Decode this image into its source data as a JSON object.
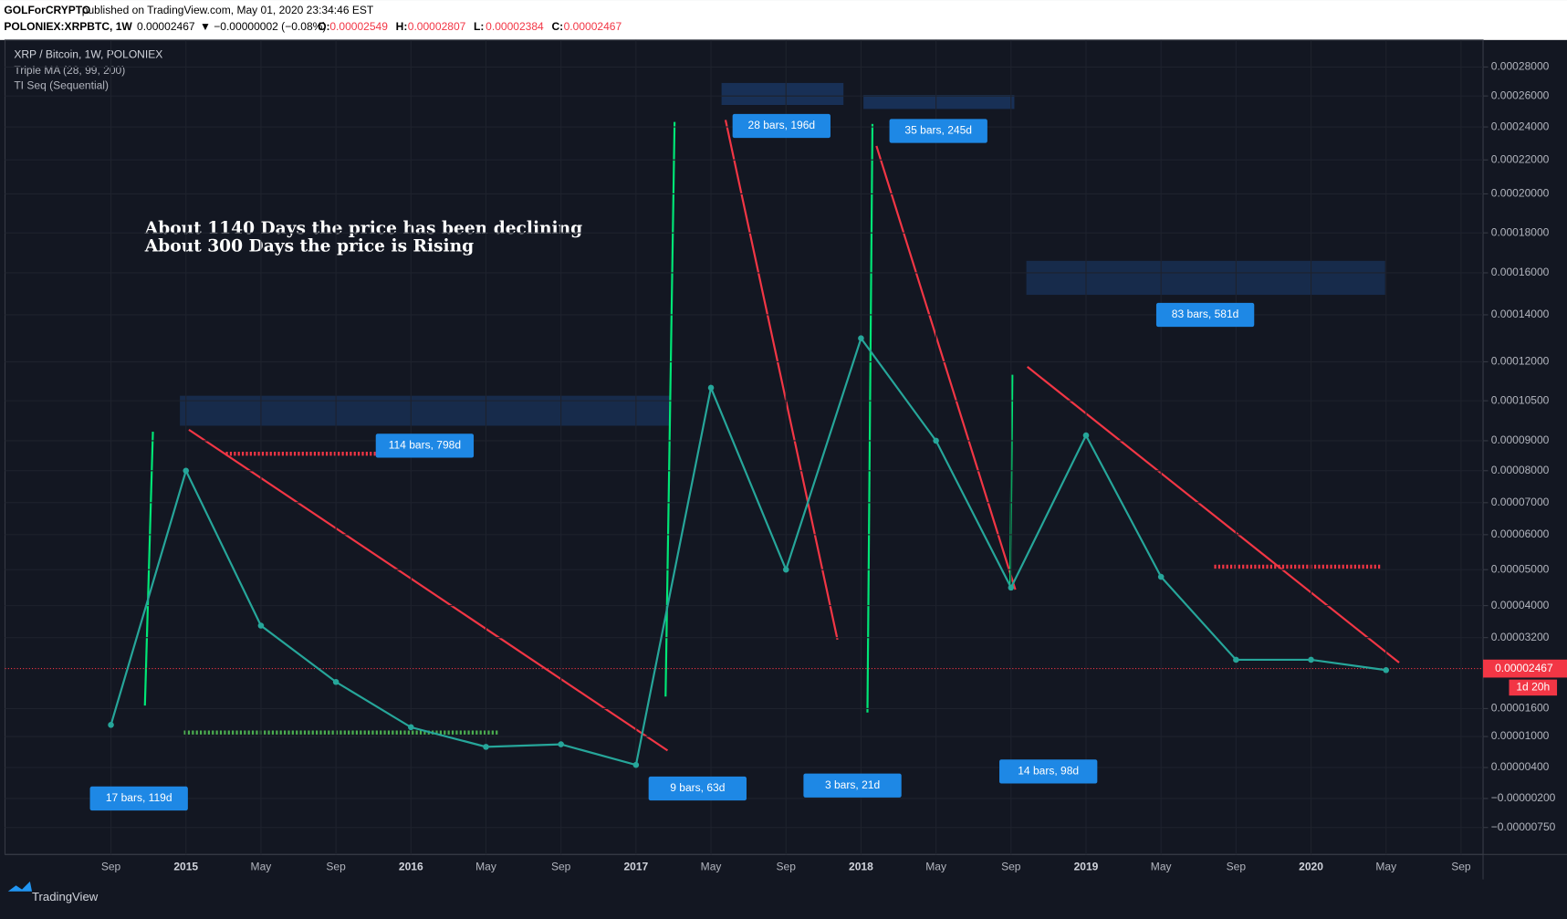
{
  "header": {
    "publisher": "GOLForCRYPTO",
    "published": "published on TradingView.com, May 01, 2020 23:34:46 EST",
    "symbol": "POLONIEX:XRPBTC, 1W",
    "price": "0.00002467",
    "change": "▼ −0.00000002 (−0.08%)",
    "ohlc": [
      {
        "label": "O:",
        "value": "0.00002549"
      },
      {
        "label": "H:",
        "value": "0.00002807"
      },
      {
        "label": "L:",
        "value": "0.00002384"
      },
      {
        "label": "C:",
        "value": "0.00002467"
      }
    ]
  },
  "chart_data": {
    "type": "line",
    "title": "XRP / Bitcoin, 1W, POLONIEX",
    "indicators": [
      "Triple MA (28, 99, 200)",
      "TI Seq (Sequential)"
    ],
    "annotations": [
      "About 1140 Days the price has been declining",
      "About  300 Days the price is Rising"
    ],
    "ranges": [
      "17 bars, 119d",
      "114 bars, 798d",
      "28 bars, 196d",
      "35 bars, 245d",
      "83 bars, 581d",
      "9 bars, 63d",
      "3 bars, 21d",
      "14 bars, 98d"
    ],
    "categories": [
      "Sep",
      "2015",
      "May",
      "Sep",
      "2016",
      "May",
      "Sep",
      "2017",
      "May",
      "Sep",
      "2018",
      "May",
      "Sep",
      "2019",
      "May",
      "Sep",
      "2020",
      "May",
      "Sep"
    ],
    "values": [
      1.25e-05,
      8e-05,
      3.5e-05,
      2.2e-05,
      1.2e-05,
      8e-06,
      8.5e-06,
      4.5e-06,
      0.00011,
      5e-05,
      0.00013,
      9e-05,
      4.5e-05,
      9.2e-05,
      4.8e-05,
      2.7e-05,
      2.7e-05,
      2.467e-05,
      null
    ],
    "color": "#26a69a",
    "last_price": {
      "value": 2.467e-05,
      "label": "0.00002467"
    },
    "countdown": "1d 20h",
    "ylim": [
      -7.5e-06,
      0.00028
    ],
    "yticks": [
      {
        "value": 0.00028,
        "label": "0.00028000"
      },
      {
        "value": 0.00026,
        "label": "0.00026000"
      },
      {
        "value": 0.00024,
        "label": "0.00024000"
      },
      {
        "value": 0.00022,
        "label": "0.00022000"
      },
      {
        "value": 0.0002,
        "label": "0.00020000"
      },
      {
        "value": 0.00018,
        "label": "0.00018000"
      },
      {
        "value": 0.00016,
        "label": "0.00016000"
      },
      {
        "value": 0.00014,
        "label": "0.00014000"
      },
      {
        "value": 0.00012,
        "label": "0.00012000"
      },
      {
        "value": 0.000105,
        "label": "0.00010500"
      },
      {
        "value": 9e-05,
        "label": "0.00009000"
      },
      {
        "value": 8e-05,
        "label": "0.00008000"
      },
      {
        "value": 7e-05,
        "label": "0.00007000"
      },
      {
        "value": 6e-05,
        "label": "0.00006000"
      },
      {
        "value": 5e-05,
        "label": "0.00005000"
      },
      {
        "value": 4e-05,
        "label": "0.00004000"
      },
      {
        "value": 3.2e-05,
        "label": "0.00003200"
      },
      {
        "value": 1.6e-05,
        "label": "0.00001600"
      },
      {
        "value": 1e-05,
        "label": "0.00001000"
      },
      {
        "value": 4e-06,
        "label": "0.00000400"
      },
      {
        "value": -2e-06,
        "label": "−0.00000200"
      },
      {
        "value": -7.5e-06,
        "label": "−0.00000750"
      }
    ],
    "grid": true
  },
  "footer": {
    "brand": "TradingView"
  }
}
